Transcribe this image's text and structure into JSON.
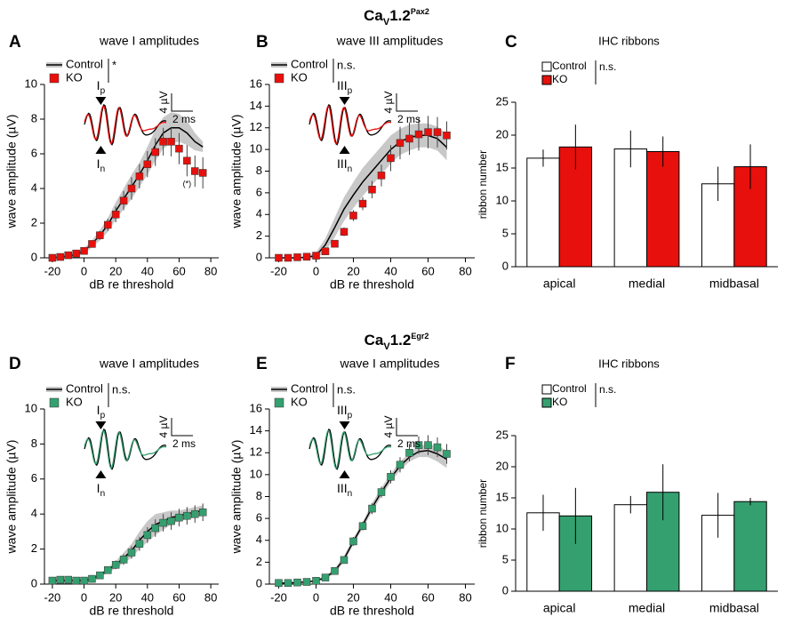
{
  "headings": [
    {
      "base": "Ca",
      "sub": "V",
      "num": "1.2",
      "sup": "Pax2"
    },
    {
      "base": "Ca",
      "sub": "V",
      "num": "1.2",
      "sup": "Egr2"
    }
  ],
  "chart_data": [
    {
      "type": "line",
      "panel": "A",
      "title": "wave I amplitudes",
      "xlabel": "dB re threshold",
      "ylabel": "wave amplitude (µV)",
      "xlim": [
        -25,
        85
      ],
      "xticks": [
        -20,
        0,
        20,
        40,
        60,
        80
      ],
      "ylim": [
        0,
        10
      ],
      "yticks": [
        0,
        2,
        4,
        6,
        8,
        10
      ],
      "x": [
        -20,
        -15,
        -10,
        -5,
        0,
        5,
        10,
        15,
        20,
        25,
        30,
        35,
        40,
        45,
        50,
        55,
        60,
        65,
        70,
        75
      ],
      "series": [
        {
          "name": "Control",
          "color": "#000000",
          "band_color": "#c8c8c8",
          "values": [
            0,
            0.05,
            0.1,
            0.2,
            0.4,
            0.8,
            1.3,
            1.9,
            2.7,
            3.4,
            4.1,
            4.8,
            5.6,
            6.5,
            7.2,
            7.5,
            7.5,
            7.2,
            6.7,
            6.4
          ],
          "errors": [
            0.05,
            0.05,
            0.1,
            0.1,
            0.15,
            0.2,
            0.3,
            0.4,
            0.5,
            0.6,
            0.7,
            0.7,
            0.8,
            0.9,
            0.9,
            0.9,
            0.8,
            0.7,
            0.5,
            0.3
          ]
        },
        {
          "name": "KO",
          "color": "#e8100c",
          "values": [
            0,
            0.05,
            0.15,
            0.25,
            0.4,
            0.8,
            1.3,
            1.9,
            2.5,
            3.3,
            4.0,
            4.7,
            5.4,
            6.1,
            6.7,
            6.7,
            6.3,
            5.6,
            5.0,
            4.9
          ],
          "errors": [
            0.05,
            0.05,
            0.05,
            0.1,
            0.1,
            0.15,
            0.25,
            0.35,
            0.45,
            0.55,
            0.65,
            0.7,
            0.75,
            0.8,
            0.8,
            0.85,
            0.9,
            0.9,
            0.9,
            0.9
          ]
        }
      ],
      "significance": "*",
      "annotation": "(*)",
      "inset": {
        "peak_p": {
          "main": "I",
          "sub": "p"
        },
        "peak_n": {
          "main": "I",
          "sub": "n"
        },
        "scale_y": "4 µV",
        "scale_x": "2 ms"
      }
    },
    {
      "type": "line",
      "panel": "B",
      "title": "wave III amplitudes",
      "xlabel": "dB re threshold",
      "ylabel": "wave amplitude (µV)",
      "xlim": [
        -25,
        85
      ],
      "xticks": [
        -20,
        0,
        20,
        40,
        60,
        80
      ],
      "ylim": [
        0,
        16
      ],
      "yticks": [
        0,
        2,
        4,
        6,
        8,
        10,
        12,
        14,
        16
      ],
      "x": [
        -20,
        -15,
        -10,
        -5,
        0,
        5,
        10,
        15,
        20,
        25,
        30,
        35,
        40,
        45,
        50,
        55,
        60,
        65,
        70
      ],
      "series": [
        {
          "name": "Control",
          "color": "#000000",
          "band_color": "#c8c8c8",
          "values": [
            0,
            0,
            0,
            0.05,
            0.2,
            1.2,
            2.8,
            4.5,
            5.8,
            7.0,
            8.0,
            9.0,
            10.0,
            10.7,
            11.1,
            11.3,
            11.3,
            11.0,
            10.2
          ],
          "errors": [
            0.05,
            0.05,
            0.05,
            0.1,
            0.3,
            0.6,
            0.9,
            1.1,
            1.2,
            1.3,
            1.3,
            1.3,
            1.3,
            1.2,
            1.2,
            1.1,
            1.1,
            1.1,
            1.2
          ]
        },
        {
          "name": "KO",
          "color": "#e8100c",
          "values": [
            0,
            0,
            0.05,
            0.1,
            0.2,
            0.6,
            1.3,
            2.4,
            3.9,
            5.0,
            6.3,
            7.6,
            9.2,
            10.6,
            11.0,
            11.4,
            11.6,
            11.6,
            11.3
          ],
          "errors": [
            0.05,
            0.05,
            0.05,
            0.05,
            0.1,
            0.2,
            0.3,
            0.4,
            0.5,
            0.6,
            0.8,
            1.0,
            1.2,
            1.5,
            1.5,
            1.5,
            1.5,
            1.4,
            1.3
          ]
        }
      ],
      "significance": "n.s.",
      "inset": {
        "peak_p": {
          "main": "III",
          "sub": "p"
        },
        "peak_n": {
          "main": "III",
          "sub": "n"
        },
        "scale_y": "4 µV",
        "scale_x": "2 ms"
      }
    },
    {
      "type": "bar",
      "panel": "C",
      "title": "IHC ribbons",
      "ylabel": "ribbon number",
      "ylim": [
        0,
        25
      ],
      "yticks": [
        0,
        5,
        10,
        15,
        20,
        25
      ],
      "categories": [
        "apical",
        "medial",
        "midbasal"
      ],
      "series": [
        {
          "name": "Control",
          "color": "#ffffff",
          "values": [
            16.5,
            17.9,
            12.6
          ],
          "errors": [
            1.3,
            2.8,
            2.6
          ]
        },
        {
          "name": "KO",
          "color": "#e8100c",
          "values": [
            18.2,
            17.5,
            15.2
          ],
          "errors": [
            3.4,
            2.3,
            3.4
          ]
        }
      ],
      "significance": "n.s."
    },
    {
      "type": "line",
      "panel": "D",
      "title": "wave I amplitudes",
      "xlabel": "dB re threshold",
      "ylabel": "wave amplitude (µV)",
      "xlim": [
        -25,
        85
      ],
      "xticks": [
        -20,
        0,
        20,
        40,
        60,
        80
      ],
      "ylim": [
        0,
        10
      ],
      "yticks": [
        0,
        2,
        4,
        6,
        8,
        10
      ],
      "x": [
        -20,
        -15,
        -10,
        -5,
        0,
        5,
        10,
        15,
        20,
        25,
        30,
        35,
        40,
        45,
        50,
        55,
        60,
        65,
        70,
        75
      ],
      "series": [
        {
          "name": "Control",
          "color": "#000000",
          "band_color": "#c8c8c8",
          "values": [
            0.2,
            0.2,
            0.2,
            0.2,
            0.2,
            0.3,
            0.5,
            0.8,
            1.1,
            1.5,
            1.9,
            2.5,
            3.0,
            3.4,
            3.6,
            3.8,
            3.9,
            4.0,
            4.1,
            4.2
          ],
          "errors": [
            0.05,
            0.05,
            0.05,
            0.05,
            0.05,
            0.1,
            0.1,
            0.15,
            0.2,
            0.3,
            0.4,
            0.5,
            0.6,
            0.6,
            0.5,
            0.4,
            0.3,
            0.3,
            0.3,
            0.3
          ]
        },
        {
          "name": "KO",
          "color": "#34a070",
          "values": [
            0.2,
            0.25,
            0.25,
            0.2,
            0.2,
            0.3,
            0.5,
            0.8,
            1.1,
            1.4,
            1.8,
            2.3,
            2.8,
            3.2,
            3.5,
            3.6,
            3.8,
            3.9,
            4.0,
            4.1
          ],
          "errors": [
            0.05,
            0.05,
            0.05,
            0.05,
            0.05,
            0.1,
            0.15,
            0.2,
            0.25,
            0.3,
            0.35,
            0.4,
            0.45,
            0.5,
            0.5,
            0.5,
            0.5,
            0.5,
            0.5,
            0.5
          ]
        }
      ],
      "significance": "n.s.",
      "inset": {
        "peak_p": {
          "main": "I",
          "sub": "p"
        },
        "peak_n": {
          "main": "I",
          "sub": "n"
        },
        "scale_y": "4 µV",
        "scale_x": "2 ms"
      }
    },
    {
      "type": "line",
      "panel": "E",
      "title": "wave I amplitudes",
      "xlabel": "dB re threshold",
      "ylabel": "wave amplitude (µV)",
      "xlim": [
        -25,
        85
      ],
      "xticks": [
        -20,
        0,
        20,
        40,
        60,
        80
      ],
      "ylim": [
        0,
        16
      ],
      "yticks": [
        0,
        2,
        4,
        6,
        8,
        10,
        12,
        14,
        16
      ],
      "x": [
        -20,
        -15,
        -10,
        -5,
        0,
        5,
        10,
        15,
        20,
        25,
        30,
        35,
        40,
        45,
        50,
        55,
        60,
        65,
        70
      ],
      "series": [
        {
          "name": "Control",
          "color": "#000000",
          "band_color": "#c8c8c8",
          "values": [
            0.1,
            0.1,
            0.15,
            0.2,
            0.3,
            0.6,
            1.2,
            2.3,
            3.9,
            5.4,
            7.0,
            8.4,
            9.7,
            10.8,
            11.6,
            12.1,
            12.2,
            11.9,
            11.4
          ],
          "errors": [
            0.05,
            0.05,
            0.05,
            0.05,
            0.1,
            0.15,
            0.2,
            0.3,
            0.3,
            0.3,
            0.4,
            0.4,
            0.4,
            0.4,
            0.4,
            0.5,
            0.6,
            0.7,
            0.8
          ]
        },
        {
          "name": "KO",
          "color": "#34a070",
          "values": [
            0.1,
            0.1,
            0.15,
            0.2,
            0.3,
            0.6,
            1.2,
            2.2,
            3.9,
            5.3,
            6.9,
            8.4,
            9.8,
            10.9,
            12.0,
            12.7,
            12.7,
            12.5,
            11.9
          ],
          "errors": [
            0.05,
            0.05,
            0.05,
            0.05,
            0.1,
            0.1,
            0.2,
            0.3,
            0.4,
            0.4,
            0.5,
            0.5,
            0.6,
            0.7,
            0.8,
            0.8,
            0.9,
            0.9,
            0.9
          ]
        }
      ],
      "significance": "n.s.",
      "inset": {
        "peak_p": {
          "main": "III",
          "sub": "p"
        },
        "peak_n": {
          "main": "III",
          "sub": "n"
        },
        "scale_y": "4 µV",
        "scale_x": "2 ms"
      }
    },
    {
      "type": "bar",
      "panel": "F",
      "title": "IHC ribbons",
      "ylabel": "ribbon number",
      "ylim": [
        0,
        25
      ],
      "yticks": [
        0,
        5,
        10,
        15,
        20,
        25
      ],
      "categories": [
        "apical",
        "medial",
        "midbasal"
      ],
      "series": [
        {
          "name": "Control",
          "color": "#ffffff",
          "values": [
            12.6,
            13.9,
            12.2
          ],
          "errors": [
            2.9,
            1.4,
            3.6
          ]
        },
        {
          "name": "KO",
          "color": "#34a070",
          "values": [
            12.1,
            15.9,
            14.4
          ],
          "errors": [
            4.5,
            4.5,
            0.6
          ]
        }
      ],
      "significance": "n.s."
    }
  ]
}
